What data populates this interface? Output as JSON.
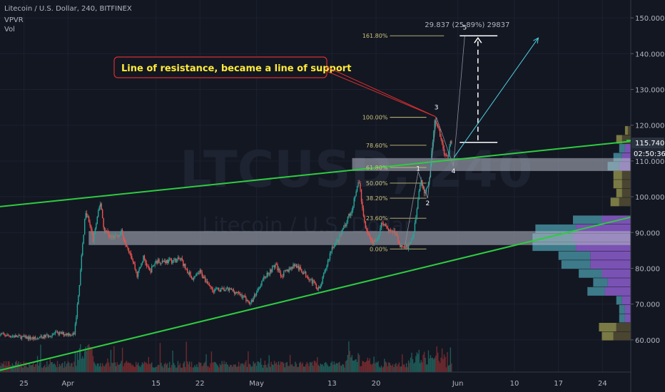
{
  "header": {
    "symbol_line": "Litecoin / U.S. Dollar, 240, BITFINEX",
    "indicator_1": "VPVR",
    "indicator_2": "Vol"
  },
  "watermark": {
    "symbol": "LTCUSD, 240",
    "name": "Litecoin / U.S. Dollar"
  },
  "annotation": {
    "text": "Line of resistance, became a line of support"
  },
  "measure": {
    "text": "29.837 (25.89%) 29837"
  },
  "price_badge": {
    "price": "115.740",
    "countdown": "02:50:36"
  },
  "colors": {
    "background": "#131722",
    "up": "#26a69a",
    "down": "#ef5350",
    "trendline": "#2ecc40",
    "fib": "#c9c27a",
    "annotation_border": "#d32f2f",
    "annotation_text": "#ffeb3b",
    "vp_up": "#3d7a8a",
    "vp_down": "#7a52b3",
    "vp_highlight": "#7a7a45"
  },
  "chart_data": {
    "type": "candlestick",
    "symbol": "LTCUSD",
    "exchange": "BITFINEX",
    "timeframe": "240",
    "y_axis": {
      "ticks": [
        60,
        70,
        80,
        90,
        100,
        110,
        120,
        130,
        140,
        150
      ],
      "tick_labels": [
        "60.000",
        "70.000",
        "80.000",
        "90.000",
        "100.000",
        "110.000",
        "120.000",
        "130.000",
        "140.000",
        "150.000"
      ],
      "range": [
        51,
        155
      ]
    },
    "x_axis": {
      "ticks": [
        {
          "day": -7,
          "label": "25"
        },
        {
          "day": 0,
          "label": "Apr"
        },
        {
          "day": 14,
          "label": "15"
        },
        {
          "day": 21,
          "label": "22"
        },
        {
          "day": 30,
          "label": "May"
        },
        {
          "day": 42,
          "label": "13"
        },
        {
          "day": 49,
          "label": "20"
        },
        {
          "day": 62,
          "label": "Jun"
        },
        {
          "day": 71,
          "label": "10"
        },
        {
          "day": 78,
          "label": "17"
        },
        {
          "day": 85,
          "label": "24"
        }
      ],
      "range": [
        -10.8,
        89.5
      ]
    },
    "price_path": [
      [
        -11,
        61.5
      ],
      [
        -5,
        60.3
      ],
      [
        -2,
        61.8
      ],
      [
        1,
        61.6
      ],
      [
        1.6,
        71
      ],
      [
        2.5,
        90
      ],
      [
        2.8,
        96.4
      ],
      [
        3.5,
        92
      ],
      [
        4,
        88
      ],
      [
        5.2,
        98.7
      ],
      [
        5.7,
        91
      ],
      [
        7,
        88.5
      ],
      [
        8.5,
        90
      ],
      [
        10,
        84
      ],
      [
        11,
        78
      ],
      [
        12,
        83
      ],
      [
        13,
        79
      ],
      [
        14,
        82
      ],
      [
        16,
        82
      ],
      [
        18,
        82.5
      ],
      [
        19,
        79
      ],
      [
        20,
        77
      ],
      [
        21,
        79
      ],
      [
        23,
        74
      ],
      [
        26,
        74
      ],
      [
        28,
        72
      ],
      [
        29,
        70
      ],
      [
        31,
        77
      ],
      [
        33,
        81
      ],
      [
        34,
        78
      ],
      [
        36,
        81
      ],
      [
        38,
        78
      ],
      [
        40,
        74
      ],
      [
        41,
        80
      ],
      [
        42,
        86
      ],
      [
        43,
        88
      ],
      [
        44,
        92
      ],
      [
        45,
        96
      ],
      [
        46.3,
        104.5
      ],
      [
        47,
        94
      ],
      [
        48,
        88
      ],
      [
        49,
        87
      ],
      [
        50,
        93
      ],
      [
        51,
        91
      ],
      [
        52,
        90
      ],
      [
        53,
        86
      ],
      [
        54,
        86
      ],
      [
        55,
        90
      ],
      [
        56.1,
        104.3
      ],
      [
        56.6,
        101
      ],
      [
        57.4,
        104
      ],
      [
        58.3,
        122
      ],
      [
        59,
        118
      ],
      [
        59.8,
        113
      ],
      [
        60.3,
        110.7
      ],
      [
        61,
        115.7
      ]
    ],
    "fibonacci": [
      {
        "label": "0.00%",
        "price": 85.4
      },
      {
        "label": "23.60%",
        "price": 94.0
      },
      {
        "label": "38.20%",
        "price": 99.6
      },
      {
        "label": "50.00%",
        "price": 103.8
      },
      {
        "label": "61.80%",
        "price": 108.2
      },
      {
        "label": "78.60%",
        "price": 114.4
      },
      {
        "label": "100.00%",
        "price": 122.2
      },
      {
        "label": "161.80%",
        "price": 145.0
      }
    ],
    "trendlines": [
      {
        "from": [
          -11,
          97.2
        ],
        "to": [
          89.5,
          115.5
        ]
      },
      {
        "from": [
          -11,
          51.4
        ],
        "to": [
          89.5,
          94.3
        ]
      }
    ],
    "zones": [
      {
        "from_day": 3.3,
        "to_day": 89.5,
        "low": 86.5,
        "high": 90.4
      },
      {
        "from_day": 45.2,
        "to_day": 89.5,
        "low": 107.2,
        "high": 110.8
      }
    ],
    "wave_labels": [
      {
        "label": "1",
        "day": 55.7,
        "price": 107.9
      },
      {
        "label": "2",
        "day": 57.2,
        "price": 98.2
      },
      {
        "label": "3",
        "day": 58.6,
        "price": 125.0
      },
      {
        "label": "4",
        "day": 61.3,
        "price": 107.2
      },
      {
        "label": "5",
        "day": 63.1,
        "price": 147.3
      }
    ],
    "projection": {
      "target": 145.0,
      "base": 115.2,
      "arrow_to": [
        74.8,
        144.4
      ],
      "change": 29.837,
      "change_pct": 25.89
    },
    "current_price": 115.74,
    "volume_profile": [
      {
        "price": 61,
        "up": 4,
        "down": 6,
        "highlight": true
      },
      {
        "price": 63.5,
        "up": 6,
        "down": 5,
        "highlight": true
      },
      {
        "price": 66,
        "up": 2,
        "down": 2,
        "highlight": false
      },
      {
        "price": 68.5,
        "up": 2,
        "down": 2,
        "highlight": false
      },
      {
        "price": 71,
        "up": 2,
        "down": 3,
        "highlight": false
      },
      {
        "price": 73.5,
        "up": 6,
        "down": 9,
        "highlight": false
      },
      {
        "price": 76,
        "up": 5,
        "down": 8,
        "highlight": false
      },
      {
        "price": 78.5,
        "up": 8,
        "down": 10,
        "highlight": false
      },
      {
        "price": 81,
        "up": 10,
        "down": 14,
        "highlight": false
      },
      {
        "price": 83.5,
        "up": 11,
        "down": 14,
        "highlight": false
      },
      {
        "price": 86,
        "up": 15,
        "down": 19,
        "highlight": false
      },
      {
        "price": 88.5,
        "up": 14,
        "down": 20,
        "highlight": false
      },
      {
        "price": 91,
        "up": 14,
        "down": 19,
        "highlight": false
      },
      {
        "price": 93.5,
        "up": 10,
        "down": 10,
        "highlight": false
      },
      {
        "price": 98.5,
        "up": 3,
        "down": 4,
        "highlight": true
      },
      {
        "price": 101,
        "up": 2,
        "down": 3,
        "highlight": true
      },
      {
        "price": 103.5,
        "up": 3,
        "down": 3,
        "highlight": true
      },
      {
        "price": 106,
        "up": 3,
        "down": 3,
        "highlight": true
      },
      {
        "price": 108.5,
        "up": 4,
        "down": 4,
        "highlight": false
      },
      {
        "price": 111,
        "up": 3,
        "down": 3,
        "highlight": false
      },
      {
        "price": 113.5,
        "up": 2,
        "down": 2,
        "highlight": false
      },
      {
        "price": 116,
        "up": 2,
        "down": 3,
        "highlight": true
      },
      {
        "price": 118.5,
        "up": 1,
        "down": 1,
        "highlight": true
      }
    ]
  }
}
